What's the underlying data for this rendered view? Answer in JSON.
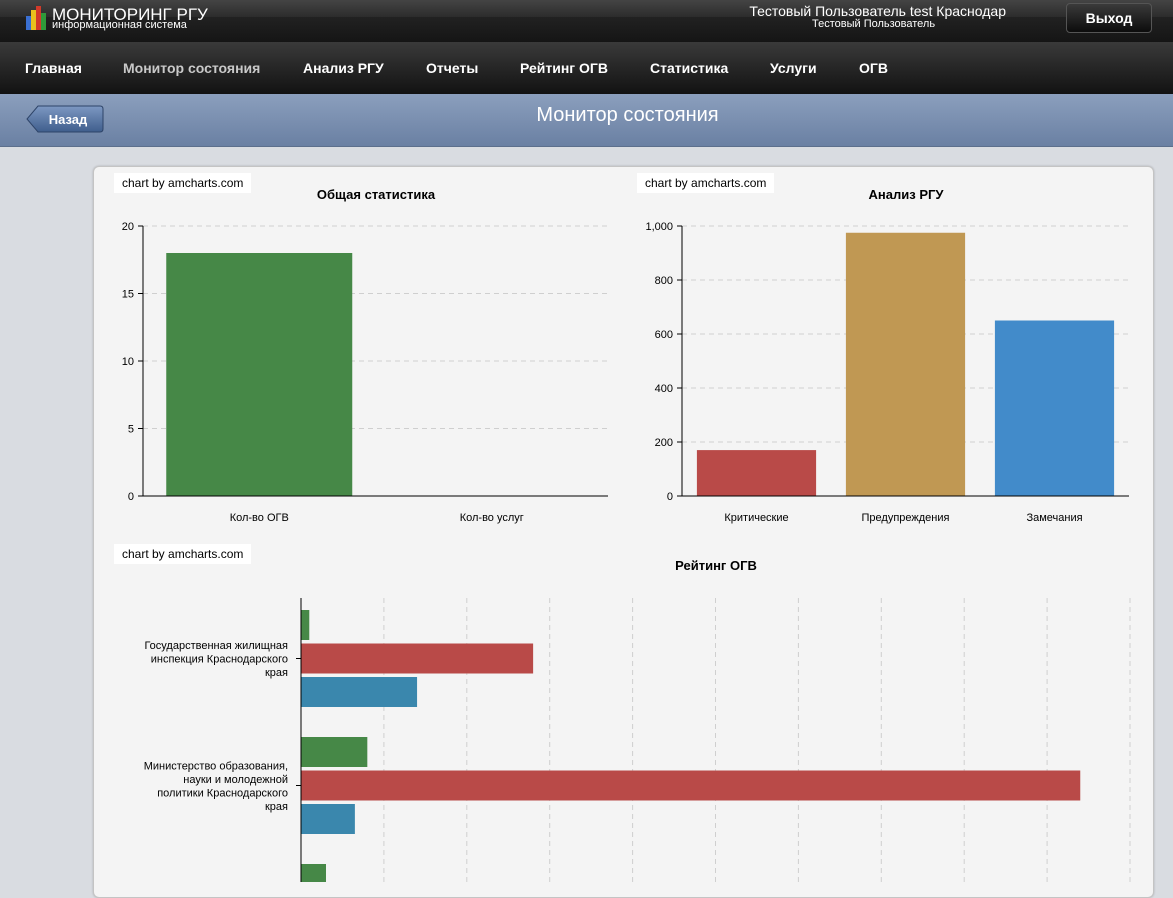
{
  "header": {
    "app_title": "МОНИТОРИНГ РГУ",
    "app_subtitle": "информационная система",
    "user_full": "Тестовый Пользователь test Краснодар",
    "user_short": "Тестовый Пользователь",
    "logout_label": "Выход"
  },
  "nav": {
    "items": [
      {
        "label": "Главная"
      },
      {
        "label": "Монитор состояния"
      },
      {
        "label": "Анализ РГУ"
      },
      {
        "label": "Отчеты"
      },
      {
        "label": "Рейтинг ОГВ"
      },
      {
        "label": "Статистика"
      },
      {
        "label": "Услуги"
      },
      {
        "label": "ОГВ"
      }
    ],
    "active": "Монитор состояния"
  },
  "subheader": {
    "back_label": "Назад",
    "page_title": "Монитор состояния"
  },
  "colors": {
    "green": "#468847",
    "red": "#b94a48",
    "gold": "#c09853",
    "blue": "#428bca",
    "steel_blue": "#3a87ad"
  },
  "credits": {
    "text": "chart by amcharts.com"
  },
  "chart_data": [
    {
      "type": "bar",
      "title": "Общая статистика",
      "categories": [
        "Кол-во ОГВ",
        "Кол-во услуг"
      ],
      "values": [
        18,
        0
      ],
      "ylim": [
        0,
        20
      ],
      "yticks": [
        "0",
        "5",
        "10",
        "15",
        "20"
      ],
      "colors": [
        "#468847",
        "#468847"
      ],
      "grid": true
    },
    {
      "type": "bar",
      "title": "Анализ РГУ",
      "categories": [
        "Критические",
        "Предупреждения",
        "Замечания"
      ],
      "values": [
        170,
        975,
        650
      ],
      "ylim": [
        0,
        1000
      ],
      "yticks": [
        "0",
        "200",
        "400",
        "600",
        "800",
        "1,000"
      ],
      "colors": [
        "#b94a48",
        "#c09853",
        "#428bca"
      ],
      "grid": true
    },
    {
      "type": "bar",
      "orientation": "horizontal",
      "title": "Рейтинг ОГВ",
      "categories": [
        "Государственная жилищная инспекция Краснодарского края",
        "Министерство образования, науки и молодежной политики Краснодарского края"
      ],
      "series": [
        {
          "values": [
            1,
            8
          ]
        },
        {
          "values": [
            28,
            94
          ]
        },
        {
          "values": [
            14,
            6.5
          ]
        }
      ],
      "series_colors": [
        "#468847",
        "#b94a48",
        "#3a87ad"
      ],
      "xlim": [
        0,
        100
      ],
      "grid": true
    }
  ]
}
